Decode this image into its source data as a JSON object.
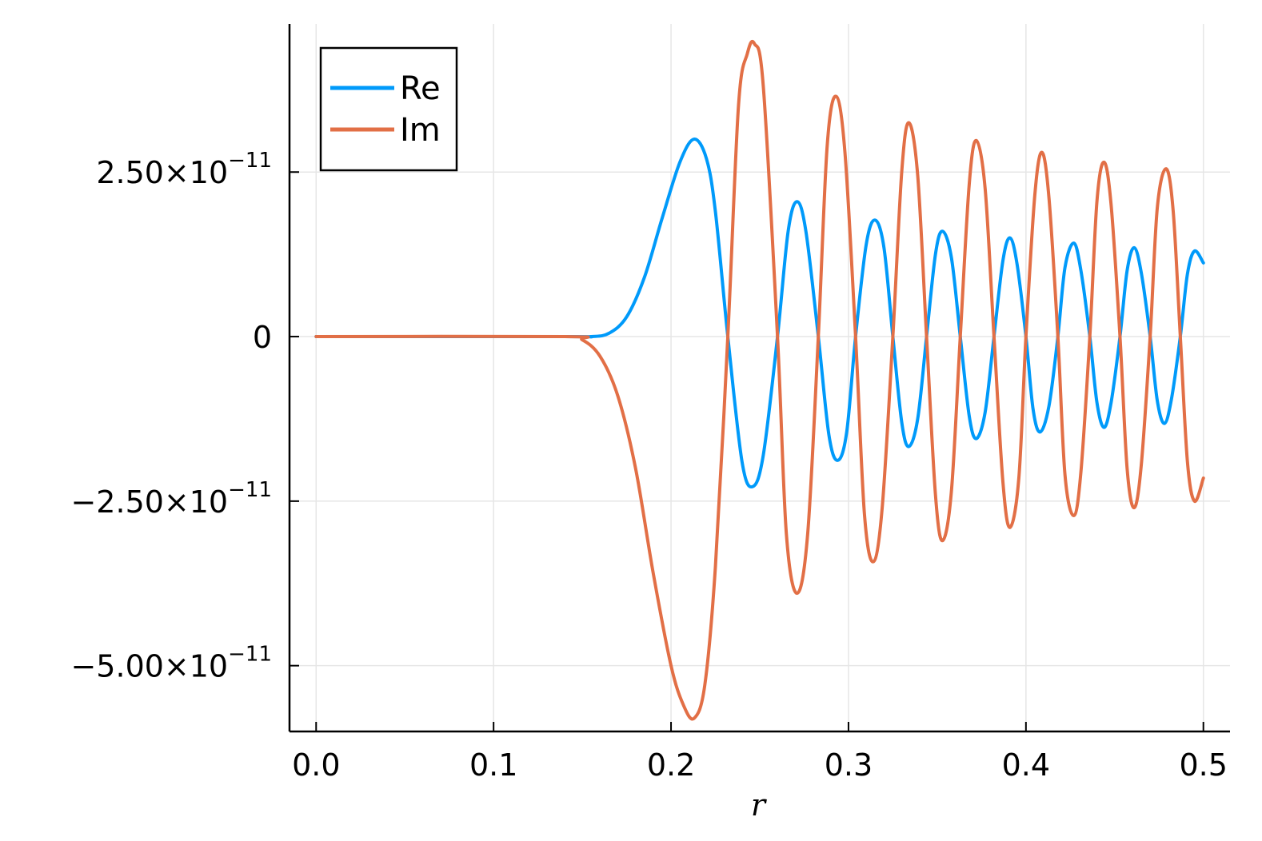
{
  "chart_data": {
    "type": "line",
    "xlabel": "r",
    "ylabel": "",
    "title": "",
    "xlim": [
      -0.015,
      0.515
    ],
    "ylim": [
      -6e-11,
      4.75e-11
    ],
    "grid": true,
    "legend_position": "top-left",
    "x_ticks": [
      {
        "value": 0.0,
        "label": "0.0"
      },
      {
        "value": 0.1,
        "label": "0.1"
      },
      {
        "value": 0.2,
        "label": "0.2"
      },
      {
        "value": 0.3,
        "label": "0.3"
      },
      {
        "value": 0.4,
        "label": "0.4"
      },
      {
        "value": 0.5,
        "label": "0.5"
      }
    ],
    "y_ticks": [
      {
        "value": 2.5e-11,
        "mantissa": "2.50×10",
        "exponent": "−11"
      },
      {
        "value": 0,
        "mantissa": "0",
        "exponent": ""
      },
      {
        "value": -2.5e-11,
        "mantissa": "−2.50×10",
        "exponent": "−11"
      },
      {
        "value": -5e-11,
        "mantissa": "−5.00×10",
        "exponent": "−11"
      }
    ],
    "series": [
      {
        "name": "Re",
        "color": "#009AFA",
        "points": [
          [
            0.0,
            0.0
          ],
          [
            0.14,
            0.0
          ],
          [
            0.155,
            0.0
          ],
          [
            0.165,
            5e-13
          ],
          [
            0.175,
            3e-12
          ],
          [
            0.185,
            9e-12
          ],
          [
            0.195,
            1.8e-11
          ],
          [
            0.205,
            2.65e-11
          ],
          [
            0.213,
            3e-11
          ],
          [
            0.22,
            2.7e-11
          ],
          [
            0.225,
            1.9e-11
          ],
          [
            0.232,
            0.0
          ],
          [
            0.24,
            -1.9e-11
          ],
          [
            0.246,
            -2.28e-11
          ],
          [
            0.252,
            -1.8e-11
          ],
          [
            0.26,
            0.0
          ],
          [
            0.266,
            1.6e-11
          ],
          [
            0.271,
            2.05e-11
          ],
          [
            0.276,
            1.6e-11
          ],
          [
            0.283,
            0.0
          ],
          [
            0.289,
            -1.5e-11
          ],
          [
            0.294,
            -1.88e-11
          ],
          [
            0.299,
            -1.45e-11
          ],
          [
            0.304,
            0.0
          ],
          [
            0.31,
            1.4e-11
          ],
          [
            0.315,
            1.77e-11
          ],
          [
            0.32,
            1.35e-11
          ],
          [
            0.325,
            0.0
          ],
          [
            0.33,
            -1.3e-11
          ],
          [
            0.334,
            -1.67e-11
          ],
          [
            0.339,
            -1.25e-11
          ],
          [
            0.344,
            0.0
          ],
          [
            0.349,
            1.25e-11
          ],
          [
            0.353,
            1.6e-11
          ],
          [
            0.358,
            1.2e-11
          ],
          [
            0.363,
            0.0
          ],
          [
            0.368,
            -1.2e-11
          ],
          [
            0.372,
            -1.55e-11
          ],
          [
            0.377,
            -1.15e-11
          ],
          [
            0.382,
            0.0
          ],
          [
            0.387,
            1.15e-11
          ],
          [
            0.391,
            1.5e-11
          ],
          [
            0.395,
            1.1e-11
          ],
          [
            0.4,
            0.0
          ],
          [
            0.404,
            -1.1e-11
          ],
          [
            0.408,
            -1.45e-11
          ],
          [
            0.413,
            -1.05e-11
          ],
          [
            0.418,
            0.0
          ],
          [
            0.422,
            1.05e-11
          ],
          [
            0.427,
            1.42e-11
          ],
          [
            0.431,
            1e-11
          ],
          [
            0.436,
            0.0
          ],
          [
            0.44,
            -1e-11
          ],
          [
            0.444,
            -1.38e-11
          ],
          [
            0.448,
            -1e-11
          ],
          [
            0.453,
            0.0
          ],
          [
            0.457,
            1e-11
          ],
          [
            0.461,
            1.35e-11
          ],
          [
            0.465,
            9.7e-12
          ],
          [
            0.47,
            0.0
          ],
          [
            0.474,
            -9.7e-12
          ],
          [
            0.478,
            -1.32e-11
          ],
          [
            0.482,
            -9.5e-12
          ],
          [
            0.487,
            0.0
          ],
          [
            0.491,
            9.5e-12
          ],
          [
            0.495,
            1.3e-11
          ],
          [
            0.5,
            1.12e-11
          ]
        ]
      },
      {
        "name": "Im",
        "color": "#E26F46",
        "points": [
          [
            0.0,
            0.0
          ],
          [
            0.14,
            0.0
          ],
          [
            0.15,
            -5e-13
          ],
          [
            0.16,
            -3e-12
          ],
          [
            0.17,
            -9e-12
          ],
          [
            0.18,
            -2e-11
          ],
          [
            0.19,
            -3.6e-11
          ],
          [
            0.2,
            -5e-11
          ],
          [
            0.207,
            -5.6e-11
          ],
          [
            0.213,
            -5.8e-11
          ],
          [
            0.219,
            -5.3e-11
          ],
          [
            0.225,
            -3.5e-11
          ],
          [
            0.232,
            0.0
          ],
          [
            0.238,
            3.5e-11
          ],
          [
            0.243,
            4.3e-11
          ],
          [
            0.247,
            4.45e-11
          ],
          [
            0.252,
            3.8e-11
          ],
          [
            0.26,
            0.0
          ],
          [
            0.265,
            -3e-11
          ],
          [
            0.271,
            -3.9e-11
          ],
          [
            0.277,
            -3e-11
          ],
          [
            0.283,
            0.0
          ],
          [
            0.288,
            2.9e-11
          ],
          [
            0.293,
            3.65e-11
          ],
          [
            0.298,
            2.8e-11
          ],
          [
            0.304,
            0.0
          ],
          [
            0.309,
            -2.7e-11
          ],
          [
            0.314,
            -3.42e-11
          ],
          [
            0.319,
            -2.6e-11
          ],
          [
            0.325,
            0.0
          ],
          [
            0.33,
            2.5e-11
          ],
          [
            0.334,
            3.25e-11
          ],
          [
            0.339,
            2.45e-11
          ],
          [
            0.344,
            0.0
          ],
          [
            0.349,
            -2.4e-11
          ],
          [
            0.353,
            -3.1e-11
          ],
          [
            0.358,
            -2.35e-11
          ],
          [
            0.363,
            0.0
          ],
          [
            0.368,
            2.3e-11
          ],
          [
            0.372,
            2.98e-11
          ],
          [
            0.377,
            2.25e-11
          ],
          [
            0.382,
            0.0
          ],
          [
            0.387,
            -2.2e-11
          ],
          [
            0.391,
            -2.9e-11
          ],
          [
            0.396,
            -2.15e-11
          ],
          [
            0.4,
            0.0
          ],
          [
            0.405,
            2.15e-11
          ],
          [
            0.409,
            2.8e-11
          ],
          [
            0.413,
            2.1e-11
          ],
          [
            0.418,
            0.0
          ],
          [
            0.422,
            -2.1e-11
          ],
          [
            0.427,
            -2.72e-11
          ],
          [
            0.431,
            -2.05e-11
          ],
          [
            0.436,
            0.0
          ],
          [
            0.44,
            2.05e-11
          ],
          [
            0.444,
            2.65e-11
          ],
          [
            0.448,
            2e-11
          ],
          [
            0.453,
            0.0
          ],
          [
            0.457,
            -2e-11
          ],
          [
            0.461,
            -2.6e-11
          ],
          [
            0.465,
            -1.95e-11
          ],
          [
            0.47,
            0.0
          ],
          [
            0.474,
            1.95e-11
          ],
          [
            0.479,
            2.55e-11
          ],
          [
            0.483,
            1.9e-11
          ],
          [
            0.487,
            0.0
          ],
          [
            0.491,
            -1.9e-11
          ],
          [
            0.495,
            -2.5e-11
          ],
          [
            0.5,
            -2.15e-11
          ]
        ]
      }
    ]
  }
}
